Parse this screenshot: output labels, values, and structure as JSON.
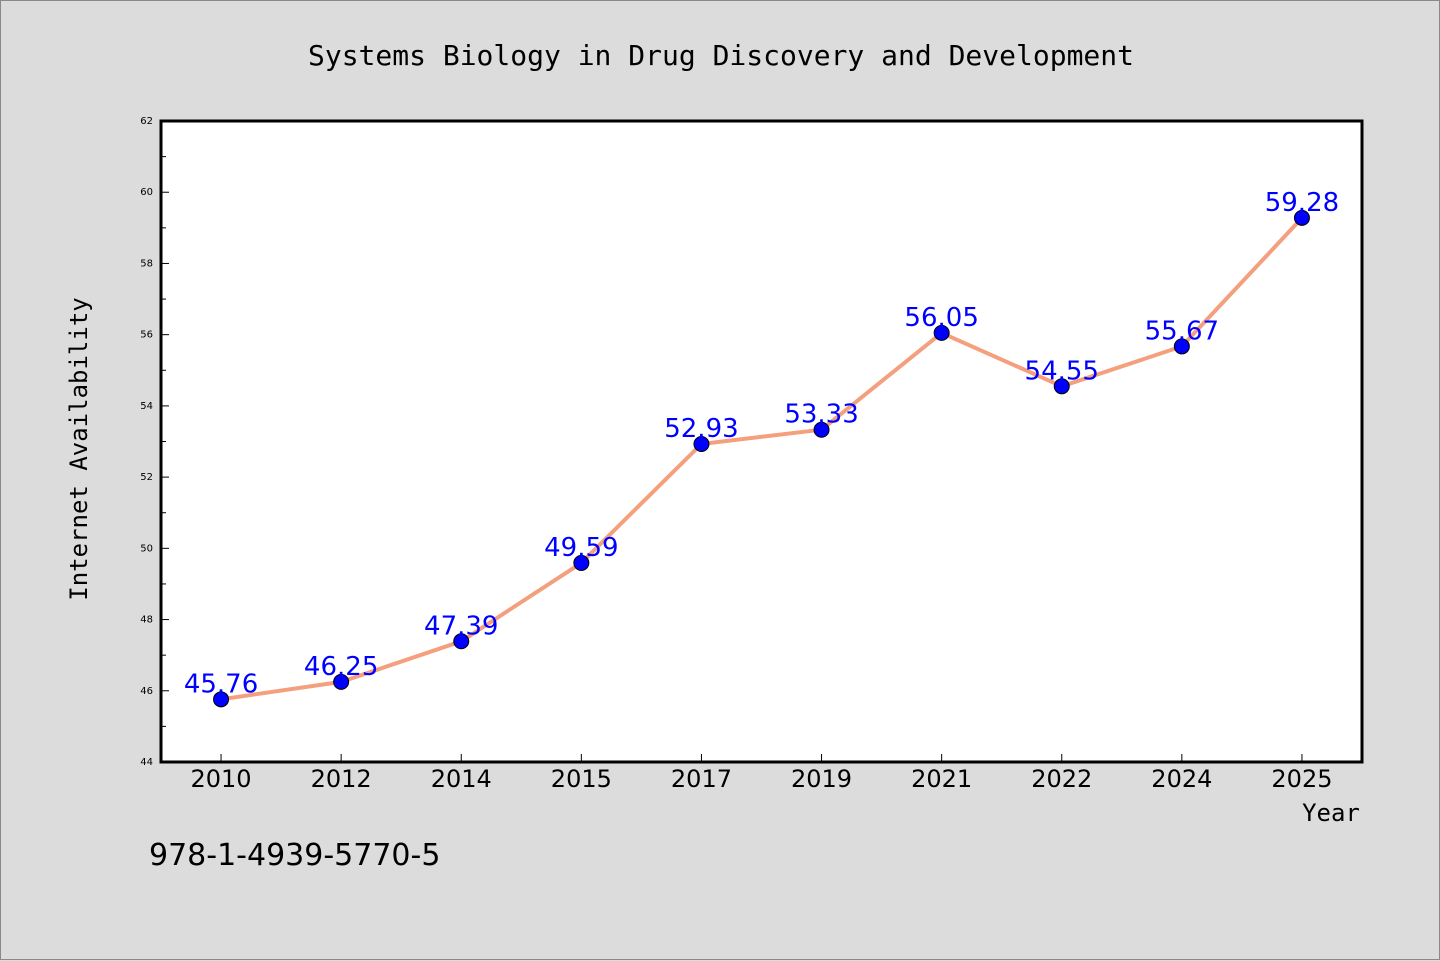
{
  "chart_data": {
    "type": "line",
    "title": "Systems Biology in Drug Discovery and Development",
    "xlabel": "Year",
    "ylabel": "Internet Availability",
    "categories": [
      "2010",
      "2012",
      "2014",
      "2015",
      "2017",
      "2019",
      "2021",
      "2022",
      "2024",
      "2025"
    ],
    "series": [
      {
        "values": [
          45.76,
          46.25,
          47.39,
          49.59,
          52.93,
          53.33,
          56.05,
          54.55,
          55.67,
          59.28
        ]
      }
    ],
    "data_labels": [
      "45.76",
      "46.25",
      "47.39",
      "49.59",
      "52.93",
      "53.33",
      "56.05",
      "54.55",
      "55.67",
      "59.28"
    ],
    "ylim": [
      44,
      62
    ],
    "yticks": [
      44,
      46,
      48,
      50,
      52,
      54,
      56,
      58,
      60,
      62
    ],
    "grid": false,
    "legend": "none",
    "line_color": "#f4a07e",
    "marker_color": "#0000ff",
    "label_color": "#0000ff",
    "plot_background": "#ffffff",
    "page_background": "#dcdcdc"
  },
  "footer": {
    "isbn": "978-1-4939-5770-5"
  }
}
